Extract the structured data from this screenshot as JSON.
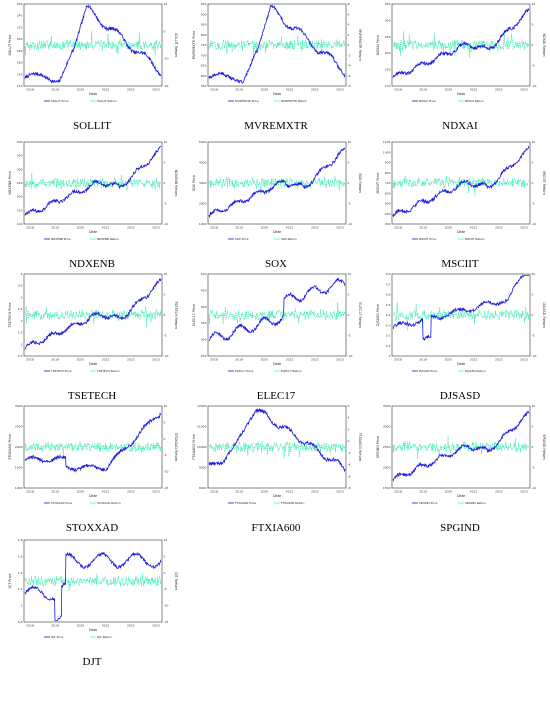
{
  "colors": {
    "price": "#1a1adb",
    "return": "#19e8a0",
    "axis": "#333333"
  },
  "common": {
    "xlabel": "Date",
    "years": [
      "2018",
      "2019",
      "2020",
      "2021",
      "2022",
      "2023"
    ]
  },
  "chart_data": [
    {
      "type": "line",
      "title": "SOLLIT",
      "ylabel_left": "SOLLIT Price",
      "ylabel_right": "SOLLIT Return",
      "ytick_left": [
        "120",
        "140",
        "160",
        "180",
        "200",
        "220",
        "240",
        "260"
      ],
      "ytick_right": [
        "-20",
        "-10",
        "0",
        "10"
      ],
      "legend": [
        "SOLLIT Price",
        "SOLLIT Return"
      ],
      "shape": "peak2021"
    },
    {
      "type": "line",
      "title": "MVREMXTR",
      "ylabel_left": "MVREMXTR Price",
      "ylabel_right": "MVREMXTR Return",
      "ytick_left": [
        "550",
        "600",
        "650",
        "700",
        "750",
        "800",
        "850",
        "900",
        "950"
      ],
      "ytick_right": [
        "-8",
        "-6",
        "-4",
        "-2",
        "0",
        "2",
        "4",
        "6",
        "8"
      ],
      "legend": [
        "MVREMXTR Price",
        "MVREMXTR Return"
      ],
      "shape": "peak2021"
    },
    {
      "type": "line",
      "title": "NDXAI",
      "ylabel_left": "NDXAI Price",
      "ylabel_right": "NDXAI Return",
      "ytick_left": [
        "100",
        "150",
        "200",
        "250",
        "300",
        "350"
      ],
      "ytick_right": [
        "-10",
        "-5",
        "0",
        "5",
        "10"
      ],
      "legend": [
        "NDXAI Price",
        "NDXAI Return"
      ],
      "shape": "uptrend"
    },
    {
      "type": "line",
      "title": "NDXENB",
      "ylabel_left": "NDXENB Price",
      "ylabel_right": "NDXENB Return",
      "ytick_left": [
        "100",
        "150",
        "200",
        "250",
        "300",
        "350",
        "400"
      ],
      "ytick_right": [
        "-10",
        "-5",
        "0",
        "5",
        "10"
      ],
      "legend": [
        "NDXENB Price",
        "NDXENB Return"
      ],
      "shape": "uptrend"
    },
    {
      "type": "line",
      "title": "SOX",
      "ylabel_left": "SOX Price",
      "ylabel_right": "SOX Return",
      "ytick_left": [
        "1000",
        "2000",
        "3000",
        "4000",
        "5000"
      ],
      "ytick_right": [
        "-10",
        "-5",
        "0",
        "5",
        "10"
      ],
      "legend": [
        "SOX Price",
        "SOX Return"
      ],
      "shape": "uptrend"
    },
    {
      "type": "line",
      "title": "MSCIIT",
      "ylabel_left": "MSCIIT Price",
      "ylabel_right": "MSCIIT Return",
      "ytick_left": [
        "300",
        "400",
        "500",
        "600",
        "700",
        "800",
        "900",
        "1000",
        "1100"
      ],
      "ytick_right": [
        "-10",
        "-5",
        "0",
        "5",
        "10"
      ],
      "legend": [
        "MSCIIT Price",
        "MSCIIT Return"
      ],
      "shape": "uptrend"
    },
    {
      "type": "line",
      "title": "TSETECH",
      "ylabel_left": "TSETECH Price",
      "ylabel_right": "TSETECH Return",
      "ytick_left": [
        "0.5",
        "1",
        "1.5",
        "2",
        "2.5",
        "3",
        "3.5",
        "4"
      ],
      "ytick_right": [
        "-10",
        "-5",
        "0",
        "5",
        "10"
      ],
      "legend": [
        "TSETECH Price",
        "TSETECH Return"
      ],
      "shape": "uptrend"
    },
    {
      "type": "line",
      "title": "ELEC17",
      "ylabel_left": "ELEC17 Price",
      "ylabel_right": "ELEC17 Return",
      "ytick_left": [
        "250",
        "300",
        "350",
        "400",
        "450",
        "500"
      ],
      "ytick_right": [
        "-10",
        "-5",
        "0",
        "5",
        "10"
      ],
      "legend": [
        "ELEC17 Price",
        "ELEC17 Return"
      ],
      "shape": "stepup"
    },
    {
      "type": "line",
      "title": "DJSASD",
      "ylabel_left": "DJSASD Price",
      "ylabel_right": "DJSASD Return",
      "ytick_left": [
        "0",
        "0.1",
        "0.2",
        "0.3",
        "0.4",
        "0.5",
        "0.6",
        "0.7",
        "0.8"
      ],
      "ytick_right": [
        "-10",
        "-5",
        "0",
        "5",
        "10"
      ],
      "legend": [
        "DJSASD Price",
        "DJSASD Return"
      ],
      "shape": "dipup"
    },
    {
      "type": "line",
      "title": "STOXXAD",
      "ylabel_left": "STOXXAD Price",
      "ylabel_right": "STOXXAD Return",
      "ytick_left": [
        "1000",
        "1500",
        "2000",
        "2500",
        "3000"
      ],
      "ytick_right": [
        "-15",
        "-10",
        "-5",
        "0",
        "5",
        "10"
      ],
      "legend": [
        "STOXXAD Price",
        "STOXXAD Return"
      ],
      "shape": "lateup"
    },
    {
      "type": "line",
      "title": "FTXIA600",
      "ylabel_left": "FTXIA600 Price",
      "ylabel_right": "FTXIA600 Return",
      "ytick_left": [
        "8000",
        "9000",
        "10000",
        "11000",
        "12000"
      ],
      "ytick_right": [
        "-8",
        "-6",
        "-4",
        "-2",
        "0",
        "2",
        "4",
        "6"
      ],
      "legend": [
        "FTXIA600 Price",
        "FTXIA600 Return"
      ],
      "shape": "hump"
    },
    {
      "type": "line",
      "title": "SPGIND",
      "ylabel_left": "SPGIND Price",
      "ylabel_right": "SPGIND Return",
      "ytick_left": [
        "1500",
        "2000",
        "2500",
        "3000",
        "3500"
      ],
      "ytick_right": [
        "-10",
        "-5",
        "0",
        "5",
        "10"
      ],
      "legend": [
        "SPGIND Price",
        "SPGIND Return"
      ],
      "shape": "uptrend"
    },
    {
      "type": "line",
      "title": "DJT",
      "ylabel_left": "DJT Price",
      "ylabel_right": "DJT Return",
      "ytick_left": [
        "0.8",
        "1",
        "1.2",
        "1.4",
        "1.6",
        "1.8"
      ],
      "ytick_right": [
        "-15",
        "-10",
        "-5",
        "0",
        "5",
        "10"
      ],
      "legend": [
        "DJT Price",
        "DJT Return"
      ],
      "shape": "dipup2"
    }
  ]
}
